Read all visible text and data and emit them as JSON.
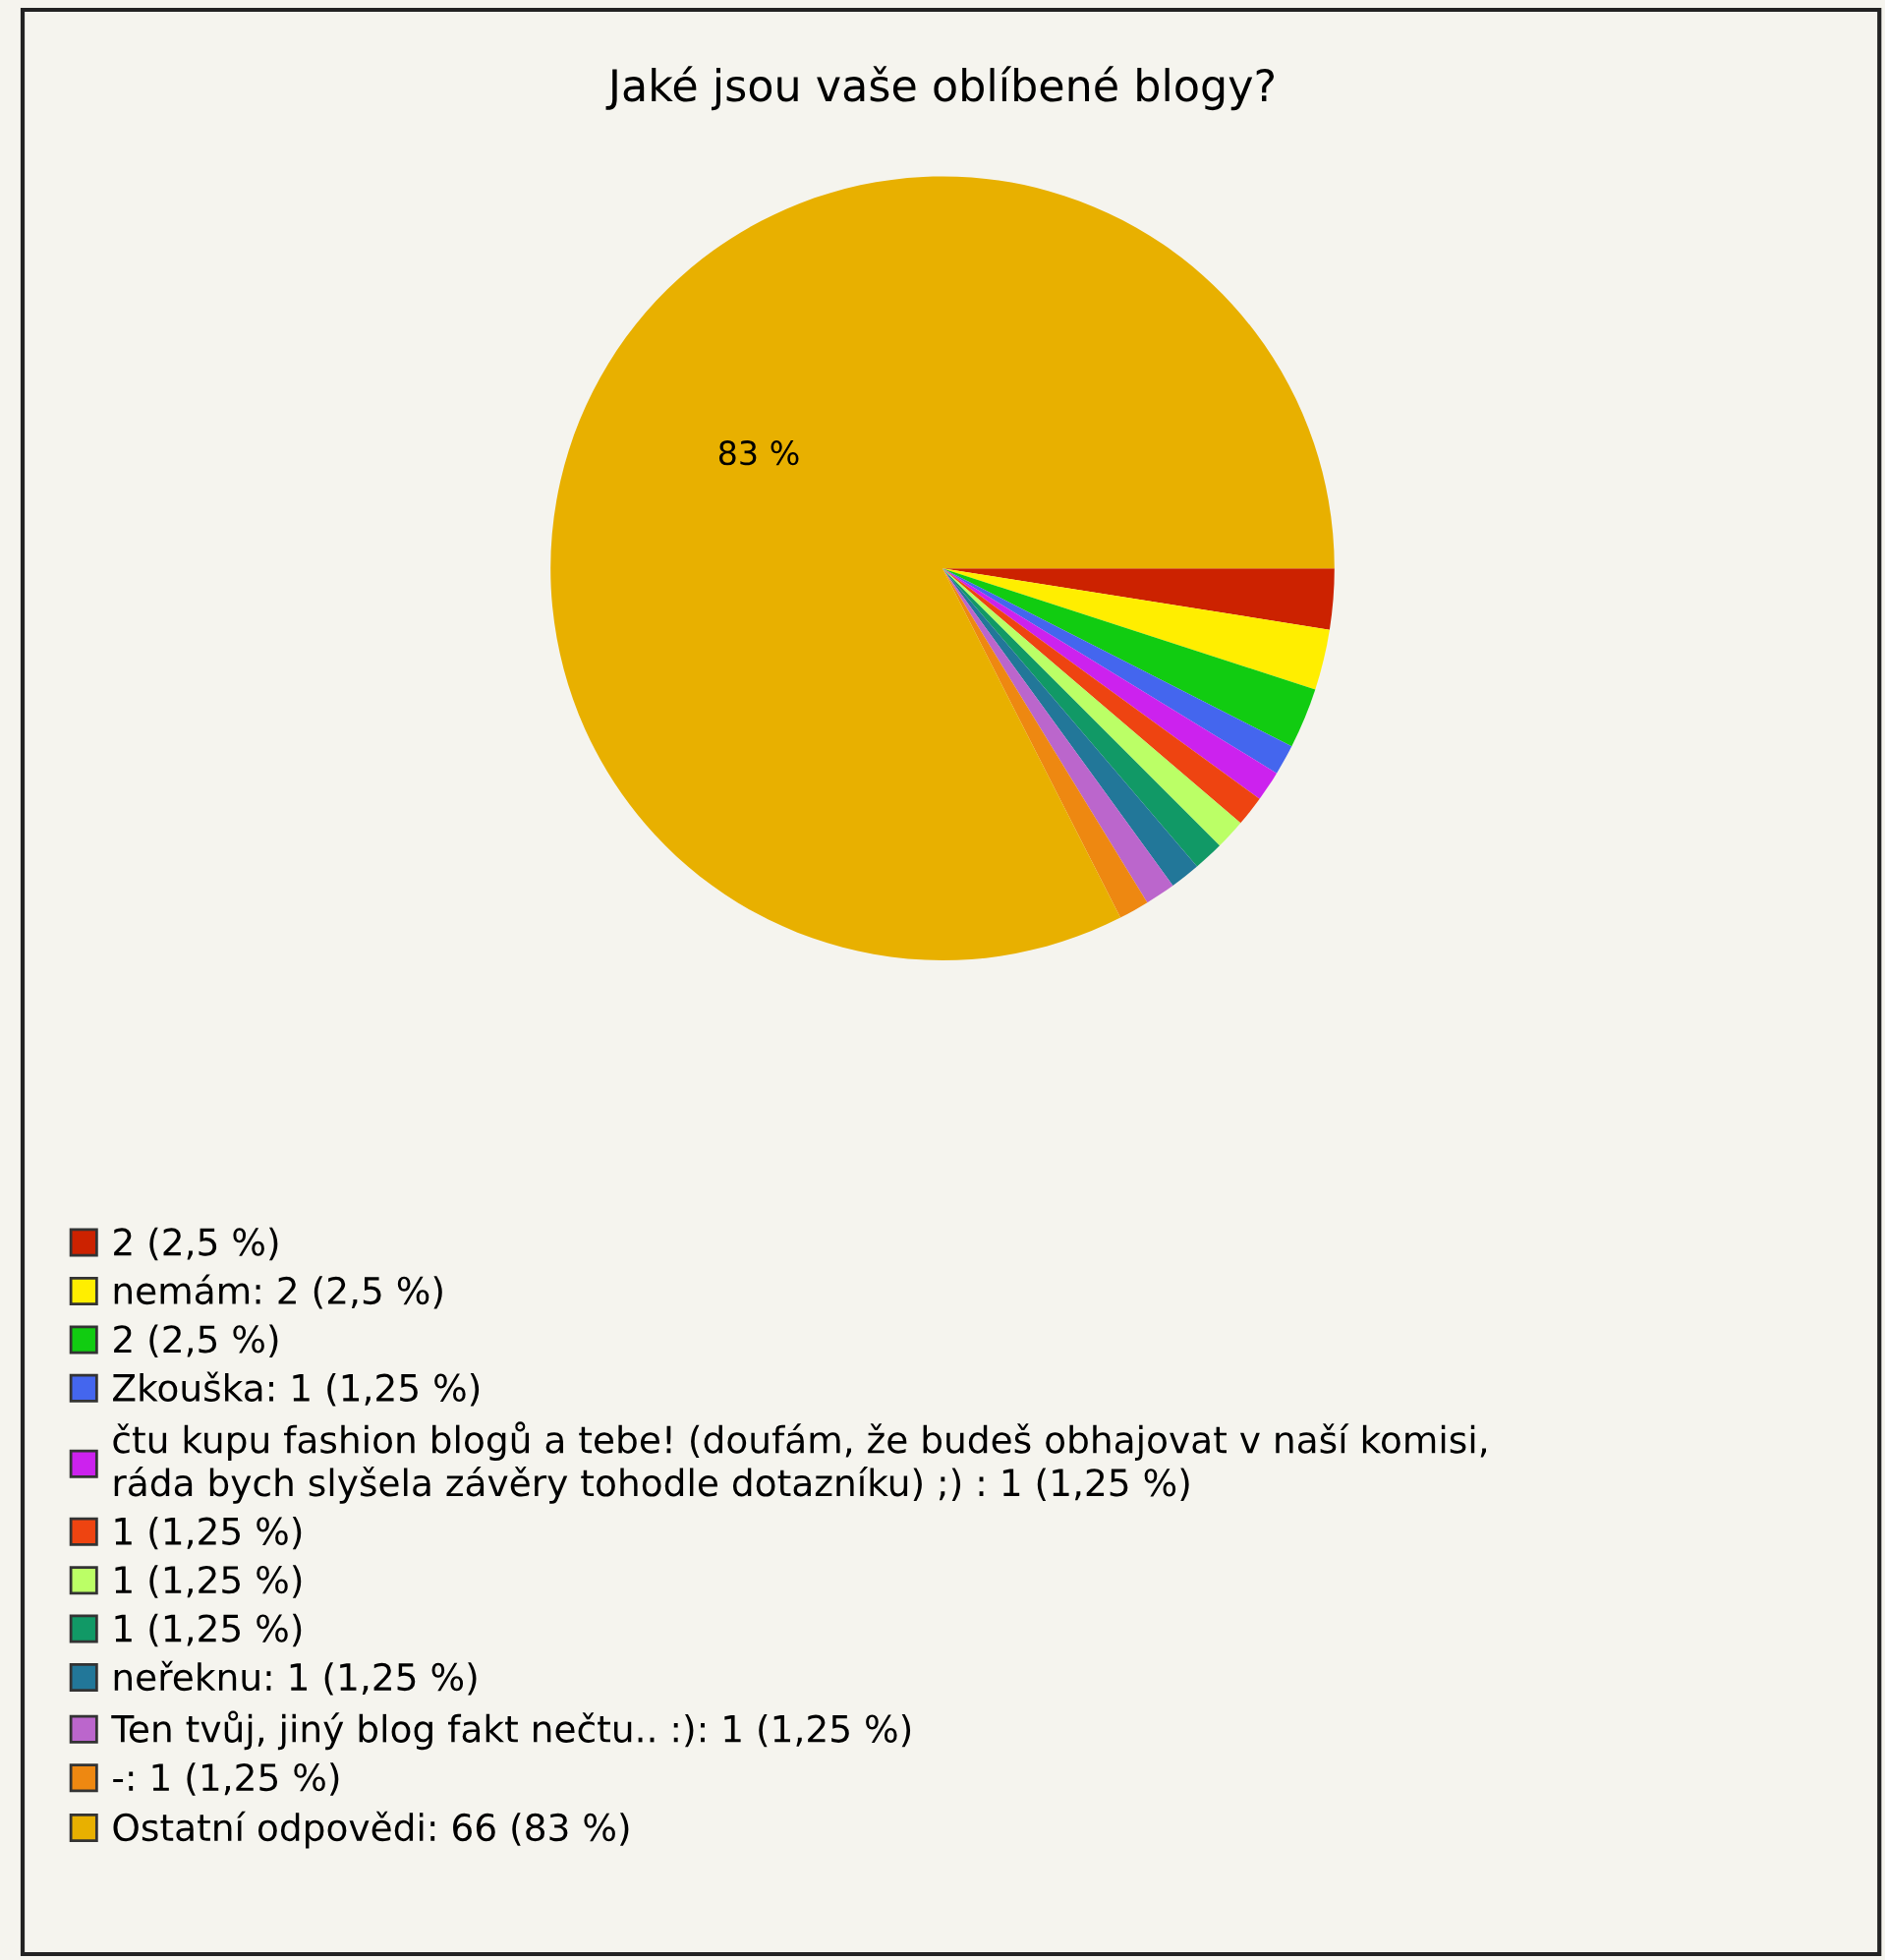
{
  "chart_data": {
    "type": "pie",
    "title": "Jaké jsou vaše oblíbené blogy?",
    "categories": [
      "2 (2,5 %)",
      "nemám: 2 (2,5 %)",
      "2 (2,5 %)",
      "Zkouška: 1 (1,25 %)",
      "čtu kupu fashion blogů a tebe! (doufám, že budeš obhajovat v naší komisi,\nráda bych slyšela závěry tohodle dotazníku) ;) : 1 (1,25 %)",
      "1 (1,25 %)",
      "1 (1,25 %)",
      "1 (1,25 %)",
      "neřeknu: 1 (1,25 %)",
      "Ten tvůj, jiný blog fakt nečtu.. :): 1 (1,25 %)",
      "-: 1 (1,25 %)",
      "Ostatní odpovědi: 66 (83 %)"
    ],
    "values": [
      2,
      2,
      2,
      1,
      1,
      1,
      1,
      1,
      1,
      1,
      1,
      66
    ],
    "colors": [
      "#cc2200",
      "#ffee00",
      "#11cc11",
      "#4466ee",
      "#cc22ee",
      "#ee4411",
      "#bbff66",
      "#119966",
      "#227799",
      "#bb66cc",
      "#ee8811",
      "#e8b000"
    ],
    "annotations": [
      "83 %"
    ],
    "legend": "bottom left"
  }
}
